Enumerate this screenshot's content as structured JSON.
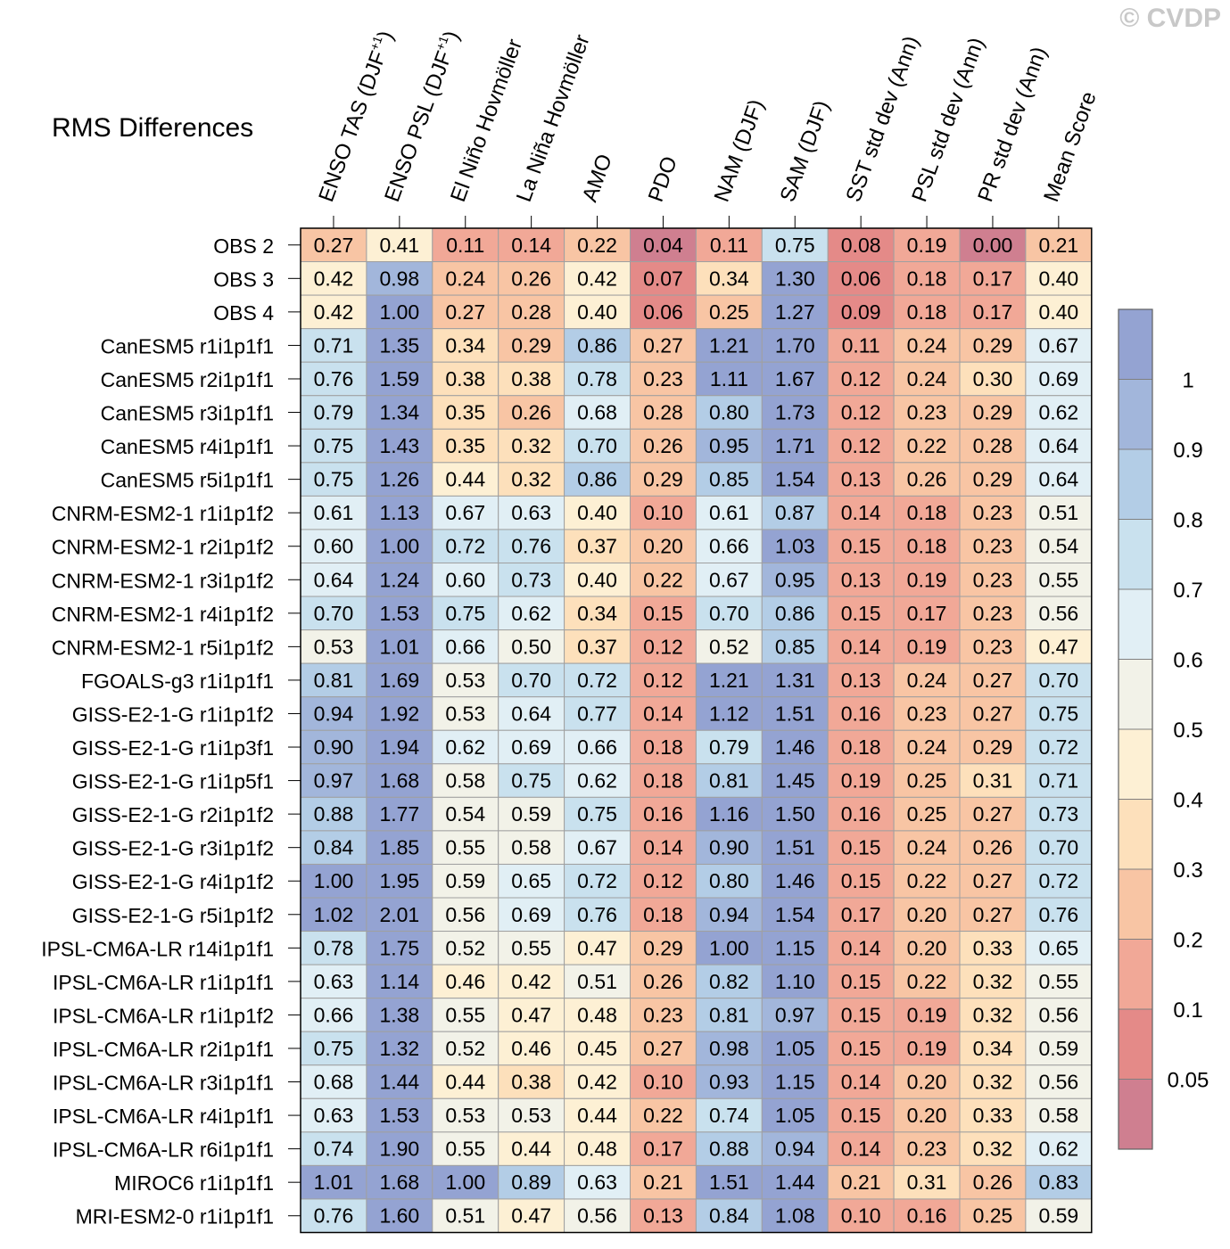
{
  "watermark": "© CVDP",
  "chart_data": {
    "type": "heatmap",
    "title": "RMS Differences",
    "columns": [
      "ENSO TAS (DJF+1)",
      "ENSO PSL (DJF+1)",
      "El Niño Hovmöller",
      "La Niña Hovmöller",
      "AMO",
      "PDO",
      "NAM (DJF)",
      "SAM (DJF)",
      "SST std dev (Ann)",
      "PSL std dev (Ann)",
      "PR std dev (Ann)",
      "Mean Score"
    ],
    "rows": [
      {
        "name": "OBS 2",
        "values": [
          0.27,
          0.41,
          0.11,
          0.14,
          0.22,
          0.04,
          0.11,
          0.75,
          0.08,
          0.19,
          0.0,
          0.21
        ]
      },
      {
        "name": "OBS 3",
        "values": [
          0.42,
          0.98,
          0.24,
          0.26,
          0.42,
          0.07,
          0.34,
          1.3,
          0.06,
          0.18,
          0.17,
          0.4
        ]
      },
      {
        "name": "OBS 4",
        "values": [
          0.42,
          1.0,
          0.27,
          0.28,
          0.4,
          0.06,
          0.25,
          1.27,
          0.09,
          0.18,
          0.17,
          0.4
        ]
      },
      {
        "name": "CanESM5 r1i1p1f1",
        "values": [
          0.71,
          1.35,
          0.34,
          0.29,
          0.86,
          0.27,
          1.21,
          1.7,
          0.11,
          0.24,
          0.29,
          0.67
        ]
      },
      {
        "name": "CanESM5 r2i1p1f1",
        "values": [
          0.76,
          1.59,
          0.38,
          0.38,
          0.78,
          0.23,
          1.11,
          1.67,
          0.12,
          0.24,
          0.3,
          0.69
        ]
      },
      {
        "name": "CanESM5 r3i1p1f1",
        "values": [
          0.79,
          1.34,
          0.35,
          0.26,
          0.68,
          0.28,
          0.8,
          1.73,
          0.12,
          0.23,
          0.29,
          0.62
        ]
      },
      {
        "name": "CanESM5 r4i1p1f1",
        "values": [
          0.75,
          1.43,
          0.35,
          0.32,
          0.7,
          0.26,
          0.95,
          1.71,
          0.12,
          0.22,
          0.28,
          0.64
        ]
      },
      {
        "name": "CanESM5 r5i1p1f1",
        "values": [
          0.75,
          1.26,
          0.44,
          0.32,
          0.86,
          0.29,
          0.85,
          1.54,
          0.13,
          0.26,
          0.29,
          0.64
        ]
      },
      {
        "name": "CNRM-ESM2-1 r1i1p1f2",
        "values": [
          0.61,
          1.13,
          0.67,
          0.63,
          0.4,
          0.1,
          0.61,
          0.87,
          0.14,
          0.18,
          0.23,
          0.51
        ]
      },
      {
        "name": "CNRM-ESM2-1 r2i1p1f2",
        "values": [
          0.6,
          1.0,
          0.72,
          0.76,
          0.37,
          0.2,
          0.66,
          1.03,
          0.15,
          0.18,
          0.23,
          0.54
        ]
      },
      {
        "name": "CNRM-ESM2-1 r3i1p1f2",
        "values": [
          0.64,
          1.24,
          0.6,
          0.73,
          0.4,
          0.22,
          0.67,
          0.95,
          0.13,
          0.19,
          0.23,
          0.55
        ]
      },
      {
        "name": "CNRM-ESM2-1 r4i1p1f2",
        "values": [
          0.7,
          1.53,
          0.75,
          0.62,
          0.34,
          0.15,
          0.7,
          0.86,
          0.15,
          0.17,
          0.23,
          0.56
        ]
      },
      {
        "name": "CNRM-ESM2-1 r5i1p1f2",
        "values": [
          0.53,
          1.01,
          0.66,
          0.5,
          0.37,
          0.12,
          0.52,
          0.85,
          0.14,
          0.19,
          0.23,
          0.47
        ]
      },
      {
        "name": "FGOALS-g3 r1i1p1f1",
        "values": [
          0.81,
          1.69,
          0.53,
          0.7,
          0.72,
          0.12,
          1.21,
          1.31,
          0.13,
          0.24,
          0.27,
          0.7
        ]
      },
      {
        "name": "GISS-E2-1-G r1i1p1f2",
        "values": [
          0.94,
          1.92,
          0.53,
          0.64,
          0.77,
          0.14,
          1.12,
          1.51,
          0.16,
          0.23,
          0.27,
          0.75
        ]
      },
      {
        "name": "GISS-E2-1-G r1i1p3f1",
        "values": [
          0.9,
          1.94,
          0.62,
          0.69,
          0.66,
          0.18,
          0.79,
          1.46,
          0.18,
          0.24,
          0.29,
          0.72
        ]
      },
      {
        "name": "GISS-E2-1-G r1i1p5f1",
        "values": [
          0.97,
          1.68,
          0.58,
          0.75,
          0.62,
          0.18,
          0.81,
          1.45,
          0.19,
          0.25,
          0.31,
          0.71
        ]
      },
      {
        "name": "GISS-E2-1-G r2i1p1f2",
        "values": [
          0.88,
          1.77,
          0.54,
          0.59,
          0.75,
          0.16,
          1.16,
          1.5,
          0.16,
          0.25,
          0.27,
          0.73
        ]
      },
      {
        "name": "GISS-E2-1-G r3i1p1f2",
        "values": [
          0.84,
          1.85,
          0.55,
          0.58,
          0.67,
          0.14,
          0.9,
          1.51,
          0.15,
          0.24,
          0.26,
          0.7
        ]
      },
      {
        "name": "GISS-E2-1-G r4i1p1f2",
        "values": [
          1.0,
          1.95,
          0.59,
          0.65,
          0.72,
          0.12,
          0.8,
          1.46,
          0.15,
          0.22,
          0.27,
          0.72
        ]
      },
      {
        "name": "GISS-E2-1-G r5i1p1f2",
        "values": [
          1.02,
          2.01,
          0.56,
          0.69,
          0.76,
          0.18,
          0.94,
          1.54,
          0.17,
          0.2,
          0.27,
          0.76
        ]
      },
      {
        "name": "IPSL-CM6A-LR r14i1p1f1",
        "values": [
          0.78,
          1.75,
          0.52,
          0.55,
          0.47,
          0.29,
          1.0,
          1.15,
          0.14,
          0.2,
          0.33,
          0.65
        ]
      },
      {
        "name": "IPSL-CM6A-LR r1i1p1f1",
        "values": [
          0.63,
          1.14,
          0.46,
          0.42,
          0.51,
          0.26,
          0.82,
          1.1,
          0.15,
          0.22,
          0.32,
          0.55
        ]
      },
      {
        "name": "IPSL-CM6A-LR r1i1p1f2",
        "values": [
          0.66,
          1.38,
          0.55,
          0.47,
          0.48,
          0.23,
          0.81,
          0.97,
          0.15,
          0.19,
          0.32,
          0.56
        ]
      },
      {
        "name": "IPSL-CM6A-LR r2i1p1f1",
        "values": [
          0.75,
          1.32,
          0.52,
          0.46,
          0.45,
          0.27,
          0.98,
          1.05,
          0.15,
          0.19,
          0.34,
          0.59
        ]
      },
      {
        "name": "IPSL-CM6A-LR r3i1p1f1",
        "values": [
          0.68,
          1.44,
          0.44,
          0.38,
          0.42,
          0.1,
          0.93,
          1.15,
          0.14,
          0.2,
          0.32,
          0.56
        ]
      },
      {
        "name": "IPSL-CM6A-LR r4i1p1f1",
        "values": [
          0.63,
          1.53,
          0.53,
          0.53,
          0.44,
          0.22,
          0.74,
          1.05,
          0.15,
          0.2,
          0.33,
          0.58
        ]
      },
      {
        "name": "IPSL-CM6A-LR r6i1p1f1",
        "values": [
          0.74,
          1.9,
          0.55,
          0.44,
          0.48,
          0.17,
          0.88,
          0.94,
          0.14,
          0.23,
          0.32,
          0.62
        ]
      },
      {
        "name": "MIROC6 r1i1p1f1",
        "values": [
          1.01,
          1.68,
          1.0,
          0.89,
          0.63,
          0.21,
          1.51,
          1.44,
          0.21,
          0.31,
          0.26,
          0.83
        ]
      },
      {
        "name": "MRI-ESM2-0 r1i1p1f1",
        "values": [
          0.76,
          1.6,
          0.51,
          0.47,
          0.56,
          0.13,
          0.84,
          1.08,
          0.1,
          0.16,
          0.25,
          0.59
        ]
      }
    ],
    "colorbar": {
      "thresholds": [
        0.05,
        0.1,
        0.2,
        0.3,
        0.4,
        0.5,
        0.6,
        0.7,
        0.8,
        0.9,
        1
      ],
      "tick_labels": [
        "1",
        "0.9",
        "0.8",
        "0.7",
        "0.6",
        "0.5",
        "0.4",
        "0.3",
        "0.2",
        "0.1",
        "0.05"
      ],
      "colors": [
        "#cf7f90",
        "#e48a88",
        "#f1a897",
        "#f8c5a4",
        "#fde0bb",
        "#fdf0d4",
        "#f2f2e8",
        "#e1eff5",
        "#c9e1ee",
        "#b3cde6",
        "#a2b6db",
        "#94a3d2"
      ]
    }
  }
}
